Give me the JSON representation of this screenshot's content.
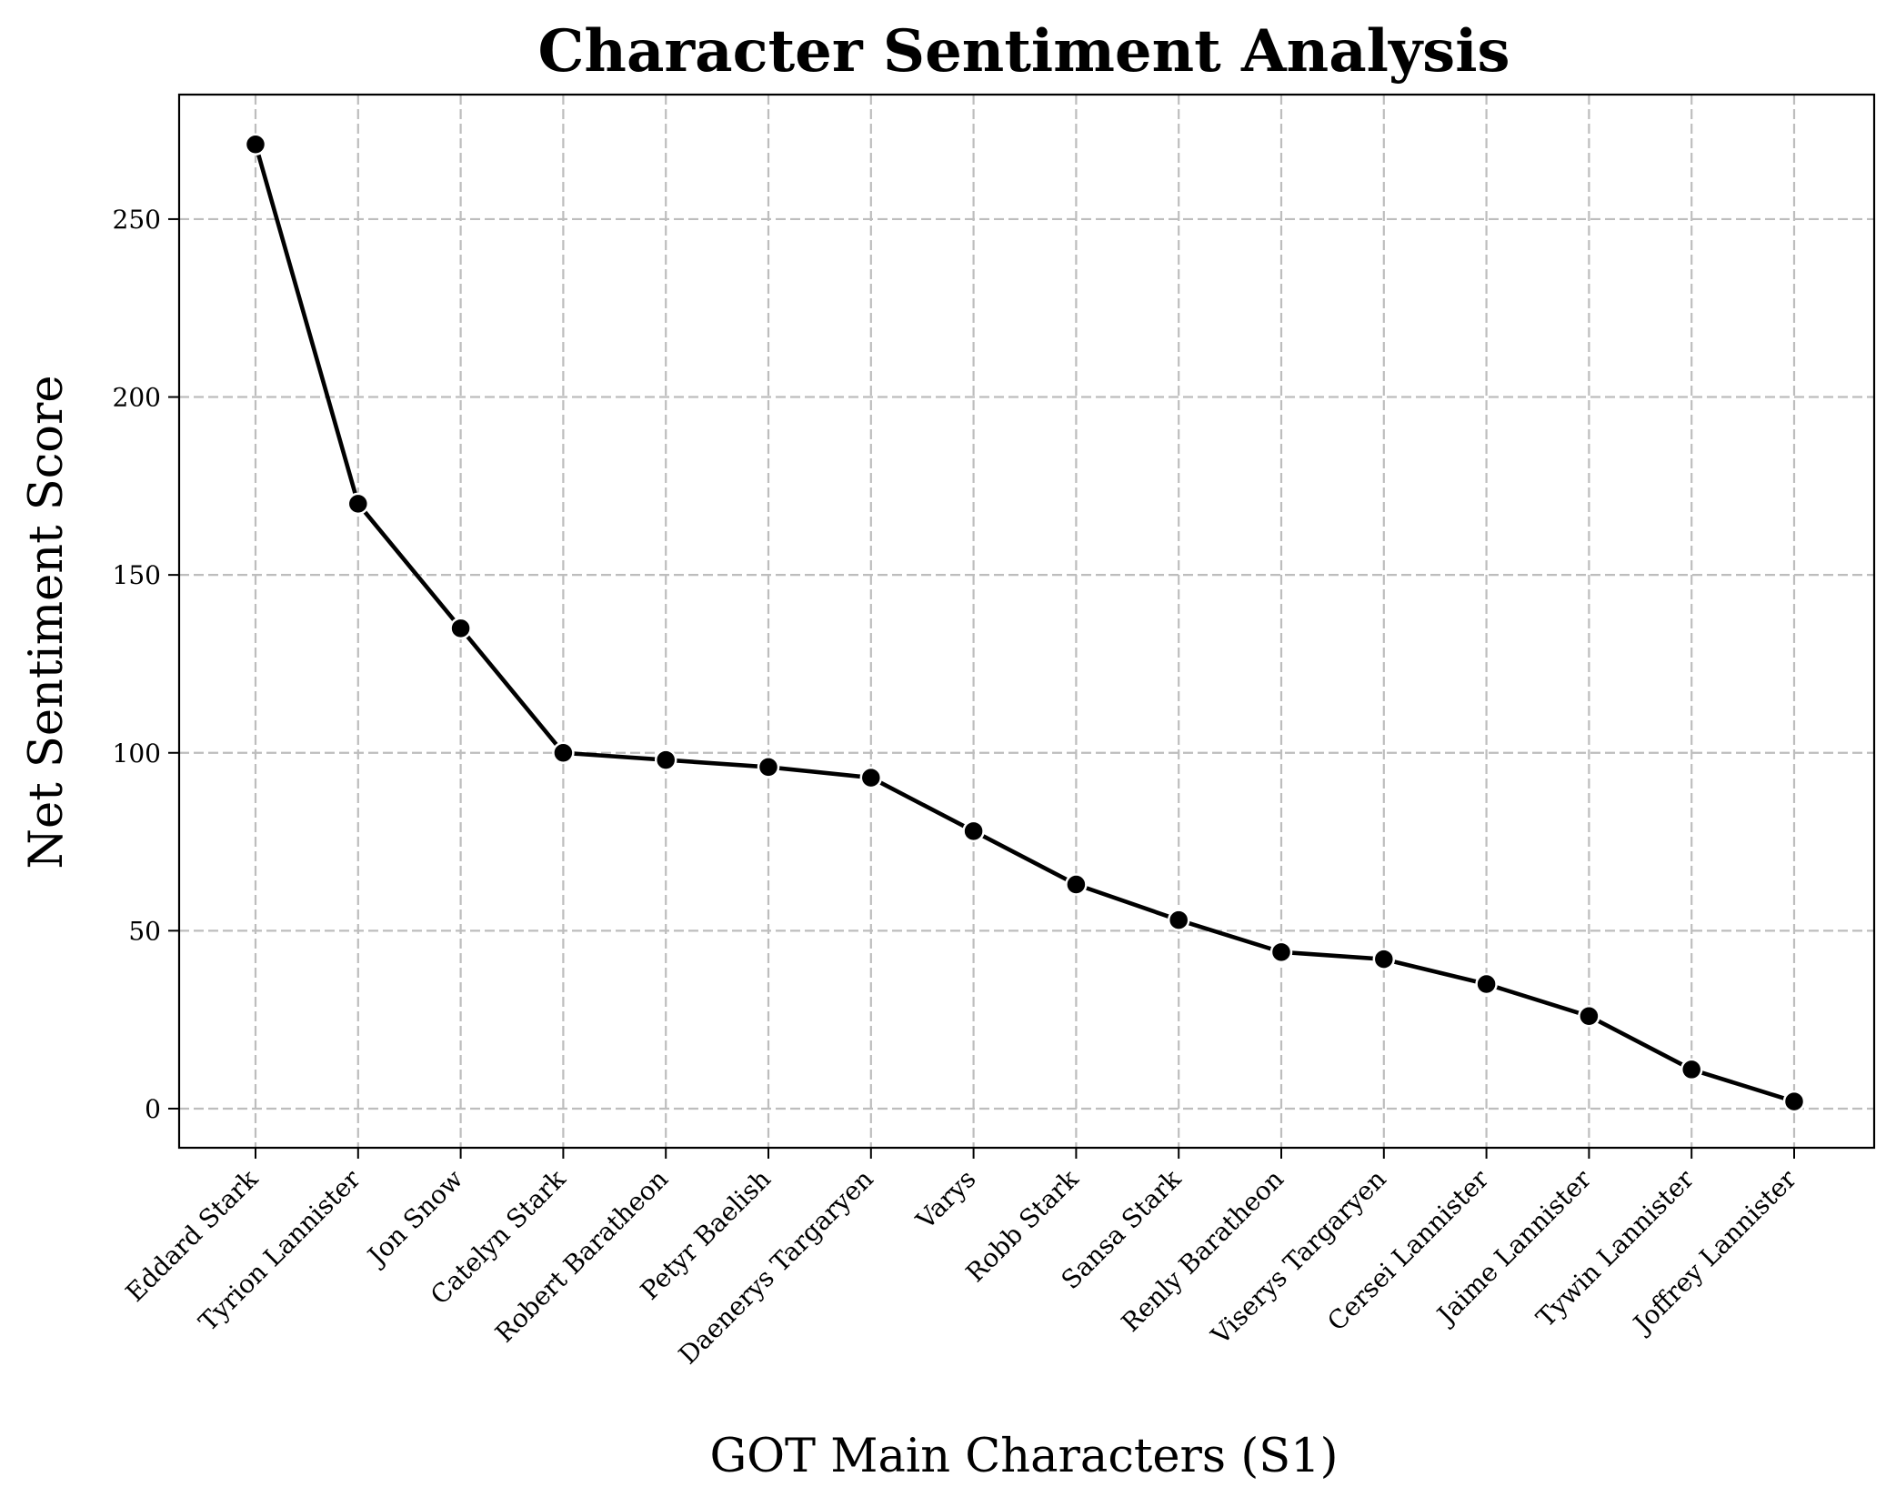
{
  "chart_data": {
    "type": "line",
    "title": "Character Sentiment Analysis",
    "xlabel": "GOT Main Characters (S1)",
    "ylabel": "Net Sentiment Score",
    "categories": [
      "Eddard Stark",
      "Tyrion Lannister",
      "Jon Snow",
      "Catelyn Stark",
      "Robert Baratheon",
      "Petyr Baelish",
      "Daenerys Targaryen",
      "Varys",
      "Robb Stark",
      "Sansa Stark",
      "Renly Baratheon",
      "Viserys Targaryen",
      "Cersei Lannister",
      "Jaime Lannister",
      "Tywin Lannister",
      "Joffrey Lannister"
    ],
    "values": [
      271,
      170,
      135,
      100,
      98,
      96,
      93,
      78,
      63,
      53,
      44,
      42,
      35,
      26,
      11,
      2
    ],
    "ylim": [
      -11,
      285
    ],
    "yticks": [
      0,
      50,
      100,
      150,
      200,
      250
    ],
    "grid": true,
    "legend": "none",
    "colors": {
      "line": "#000000",
      "marker_fill": "#000000",
      "marker_edge": "#ffffff",
      "grid": "#bdbdbd",
      "background": "#ffffff"
    }
  }
}
